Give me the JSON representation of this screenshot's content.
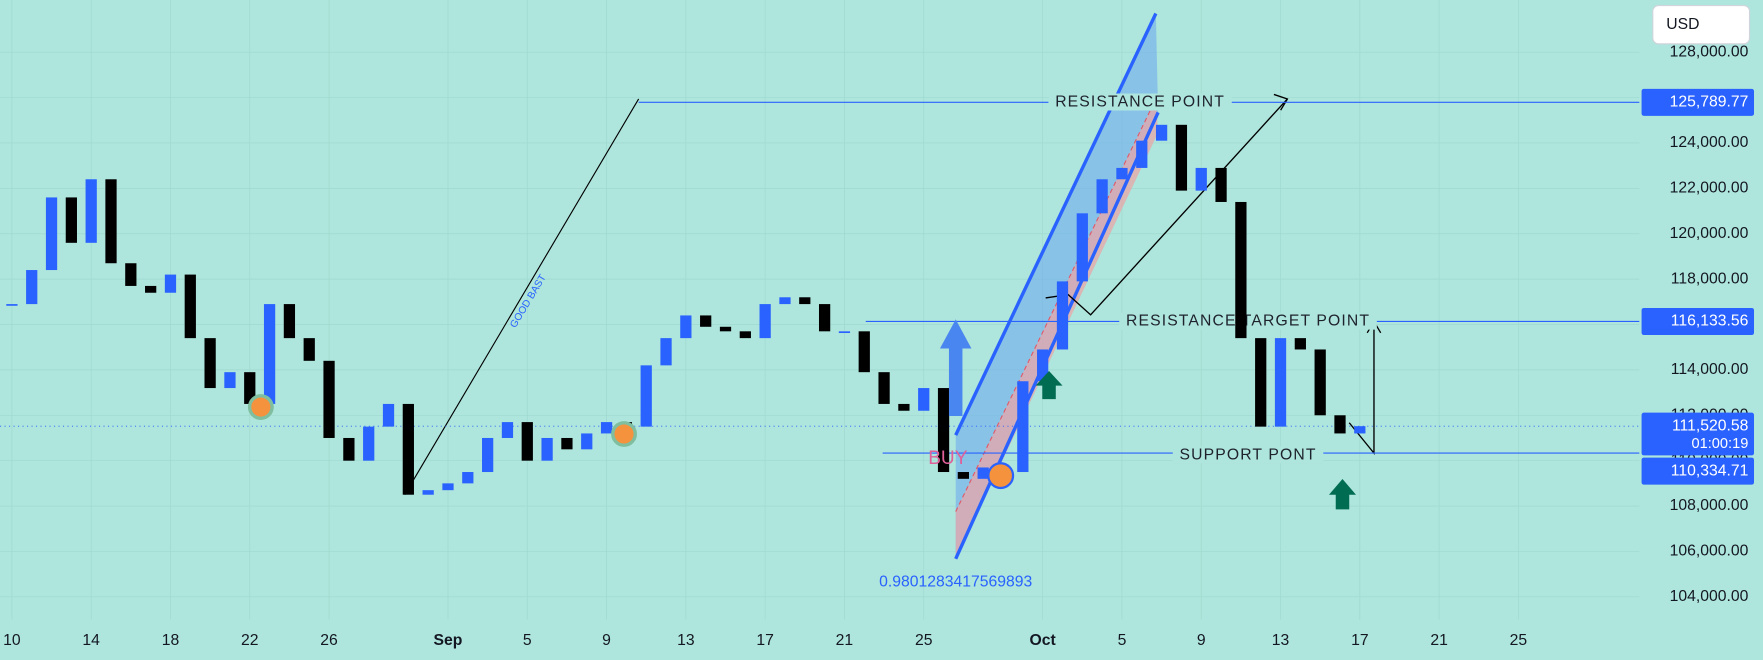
{
  "chart_data": {
    "type": "candlestick",
    "currency": "USD",
    "x": [
      0,
      1,
      2,
      3,
      4,
      5,
      6,
      7,
      8,
      9,
      10,
      11,
      12,
      13,
      14,
      15,
      16,
      17,
      18,
      19,
      20,
      21,
      22,
      23,
      24,
      25,
      26,
      27,
      28,
      29,
      30,
      31,
      32,
      33,
      34,
      35,
      36,
      37,
      38,
      39,
      40,
      41,
      42,
      43,
      44,
      45,
      46,
      47,
      48,
      49,
      50,
      51,
      52,
      53,
      54,
      55,
      56,
      57,
      58,
      59,
      60,
      61,
      62,
      63,
      64,
      65,
      66,
      67,
      68
    ],
    "series": [
      {
        "color": "#2962ff",
        "down_color": "#000000",
        "values": [
          116900,
          118400,
          121600,
          119600,
          122400,
          118700,
          117700,
          117400,
          118200,
          115400,
          113200,
          113900,
          112500,
          116900,
          115400,
          114400,
          111000,
          110000,
          111500,
          112500,
          108500,
          108700,
          109000,
          109500,
          111000,
          111700,
          110000,
          111000,
          110500,
          111200,
          111700,
          111500,
          114200,
          115400,
          116400,
          115900,
          115700,
          115400,
          116900,
          117200,
          116900,
          115700,
          115700,
          113900,
          112500,
          112200,
          113200,
          109500,
          109200,
          109700,
          109500,
          113500,
          114900,
          117900,
          120900,
          122400,
          122900,
          124100,
          124800,
          121900,
          122900,
          121400,
          115400,
          111500,
          115400,
          114900,
          112000,
          111200,
          111520.58
        ]
      }
    ],
    "xlim": [
      -0.6,
      82.1
    ],
    "xticks": [
      {
        "value": 0,
        "label": "10"
      },
      {
        "value": 4,
        "label": "14"
      },
      {
        "value": 8,
        "label": "18"
      },
      {
        "value": 12,
        "label": "22"
      },
      {
        "value": 16,
        "label": "26"
      },
      {
        "value": 22,
        "label": "Sep"
      },
      {
        "value": 26,
        "label": "5"
      },
      {
        "value": 30,
        "label": "9"
      },
      {
        "value": 34,
        "label": "13"
      },
      {
        "value": 38,
        "label": "17"
      },
      {
        "value": 42,
        "label": "21"
      },
      {
        "value": 46,
        "label": "25"
      },
      {
        "value": 52,
        "label": "Oct"
      },
      {
        "value": 56,
        "label": "5"
      },
      {
        "value": 60,
        "label": "9"
      },
      {
        "value": 64,
        "label": "13"
      },
      {
        "value": 68,
        "label": "17"
      },
      {
        "value": 72,
        "label": "21"
      },
      {
        "value": 76,
        "label": "25"
      }
    ],
    "ylim": [
      103000,
      130300
    ],
    "yticks": [
      {
        "value": 104000,
        "label": "104,000.00"
      },
      {
        "value": 106000,
        "label": "106,000.00"
      },
      {
        "value": 108000,
        "label": "108,000.00"
      },
      {
        "value": 110000,
        "label": "110,000.00"
      },
      {
        "value": 112000,
        "label": "112,000.00"
      },
      {
        "value": 114000,
        "label": "114,000.00"
      },
      {
        "value": 116000,
        "label": "116,000.00"
      },
      {
        "value": 118000,
        "label": "118,000.00"
      },
      {
        "value": 120000,
        "label": "120,000.00"
      },
      {
        "value": 122000,
        "label": "122,000.00"
      },
      {
        "value": 124000,
        "label": "124,000.00"
      },
      {
        "value": 126000,
        "label": "126,000.00"
      },
      {
        "value": 128000,
        "label": "128,000.00"
      }
    ],
    "price_labels": [
      {
        "value": 125789.77,
        "label": "125,789.77",
        "note": "RESISTANCE  POINT"
      },
      {
        "value": 116133.56,
        "label": "116,133.56",
        "note": "RESISTANCE  TARGET  POINT"
      },
      {
        "value": 111520.58,
        "label": "111,520.58",
        "countdown": "01:00:19"
      },
      {
        "value": 110334.71,
        "label": "110,334.71",
        "note": "SUPPORT  PONT"
      }
    ],
    "annotations": {
      "buy": "BUY",
      "trend": "GOOD  BAST",
      "ratio": "0.9801283417569893"
    }
  }
}
